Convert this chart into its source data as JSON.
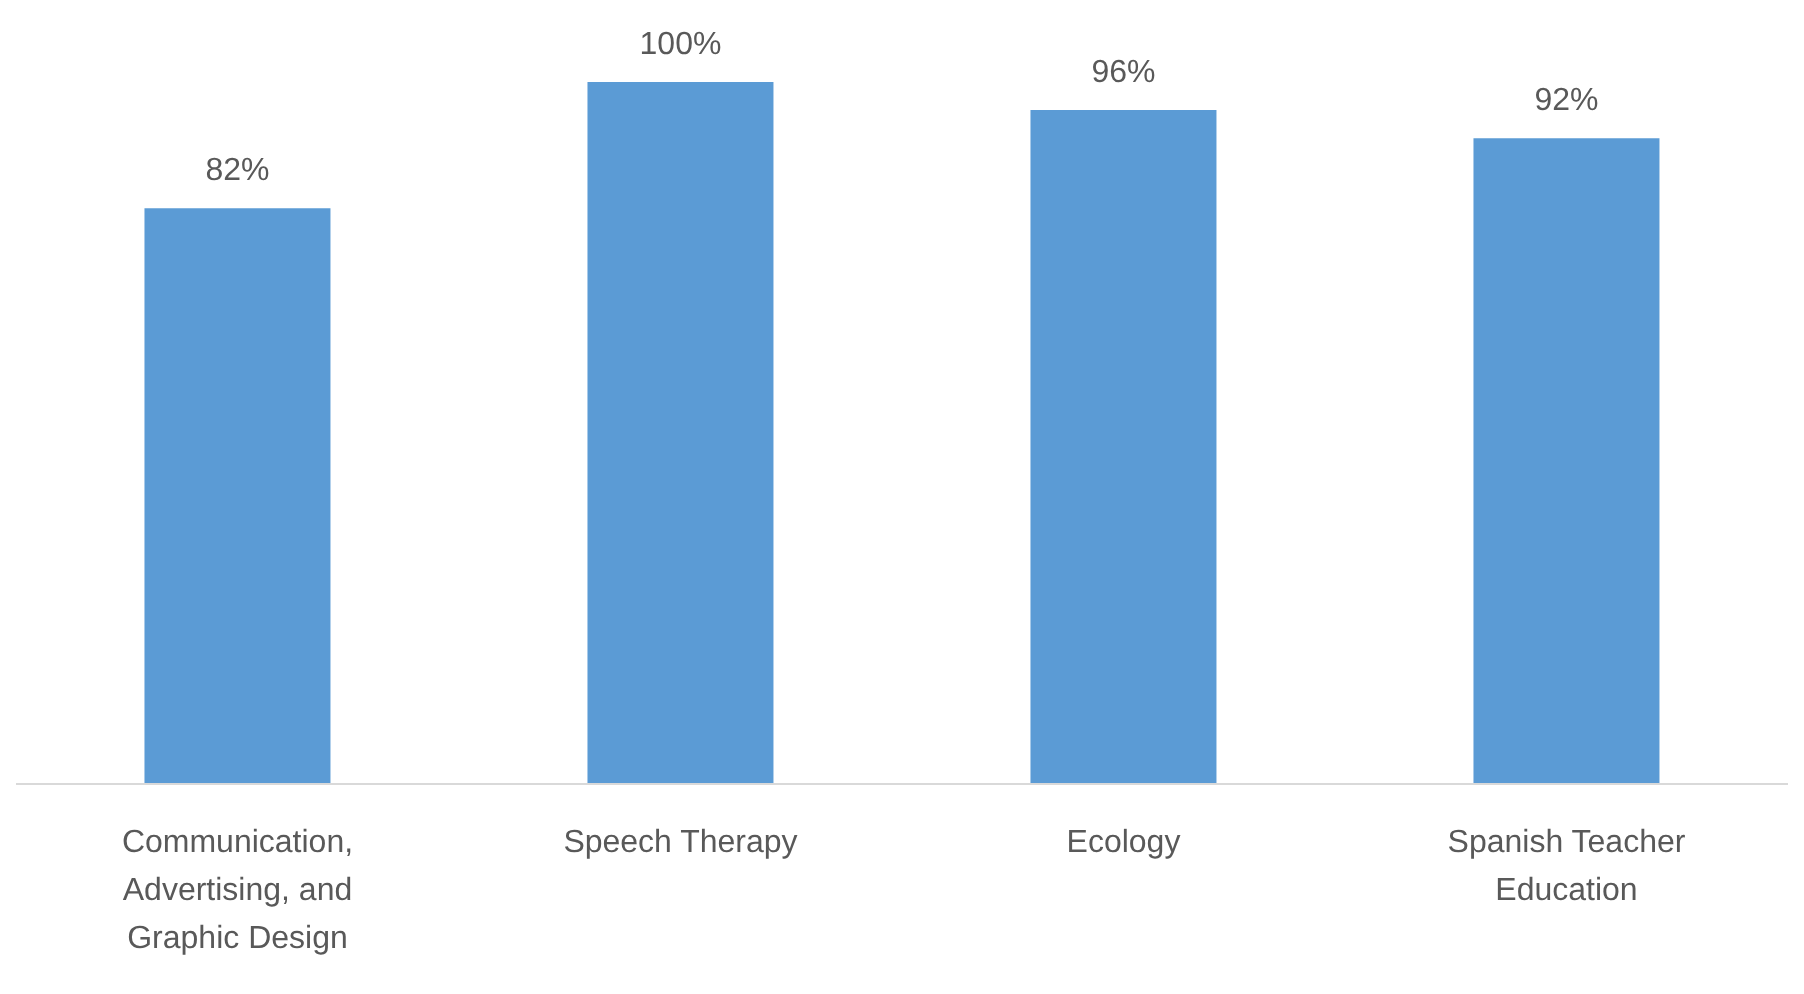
{
  "chart_data": {
    "type": "bar",
    "categories": [
      "Communication, Advertising, and Graphic Design",
      "Speech Therapy",
      "Ecology",
      "Spanish Teacher Education"
    ],
    "values": [
      82,
      100,
      96,
      92
    ],
    "value_labels": [
      "82%",
      "100%",
      "96%",
      "92%"
    ],
    "color": "#5b9bd5"
  }
}
